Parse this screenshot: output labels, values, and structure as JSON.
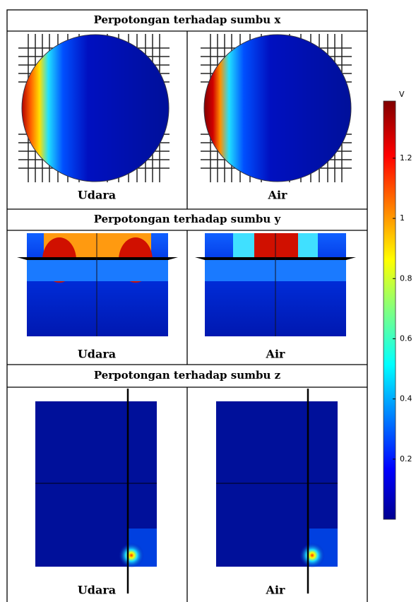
{
  "sections": [
    {
      "title": "Perpotongan terhadap sumbu x",
      "labels": [
        "Udara",
        "Air"
      ]
    },
    {
      "title": "Perpotongan terhadap sumbu y",
      "labels": [
        "Udara",
        "Air"
      ]
    },
    {
      "title": "Perpotongan terhadap sumbu z",
      "labels": [
        "Udara",
        "Air"
      ]
    }
  ],
  "colorbar": {
    "unit": "V",
    "range": [
      0,
      1.39
    ],
    "ticks": [
      0.2,
      0.4,
      0.6,
      0.8,
      1,
      1.2
    ]
  }
}
